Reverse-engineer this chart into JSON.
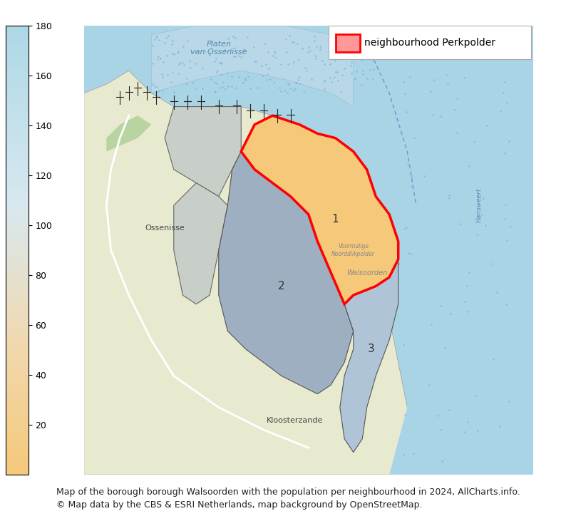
{
  "title": "",
  "caption_line1": "Map of the borough borough Walsoorden with the population per neighbourhood in 2024, AllCharts.info.",
  "caption_line2": "© Map data by the CBS & ESRI Netherlands, map background by OpenStreetMap.",
  "legend_label": "neighbourhood Perkpolder",
  "legend_color": "#ff0000",
  "colorbar_min": 0,
  "colorbar_max": 180,
  "colorbar_ticks": [
    20,
    40,
    60,
    80,
    100,
    120,
    140,
    160,
    180
  ],
  "colorbar_color_low": "#f5deb3",
  "colorbar_color_mid": "#e8d5b0",
  "colorbar_color_high": "#add8e6",
  "bg_color": "#ffffff",
  "map_bg": "#e8f4f8",
  "neighbourhood_1_color": "#f5c87a",
  "neighbourhood_1_label": "1",
  "neighbourhood_2_color": "#b0bec5",
  "neighbourhood_2_label": "2",
  "neighbourhood_3_color": "#b0bec5",
  "neighbourhood_3_label": "3",
  "water_color": "#a8d4e6",
  "land_color": "#e8ead0",
  "forest_color": "#b8d4a0",
  "road_color": "#ffffff",
  "caption_fontsize": 9,
  "tick_fontsize": 9,
  "legend_fontsize": 10,
  "fig_width": 7.94,
  "fig_height": 7.24,
  "dpi": 100
}
